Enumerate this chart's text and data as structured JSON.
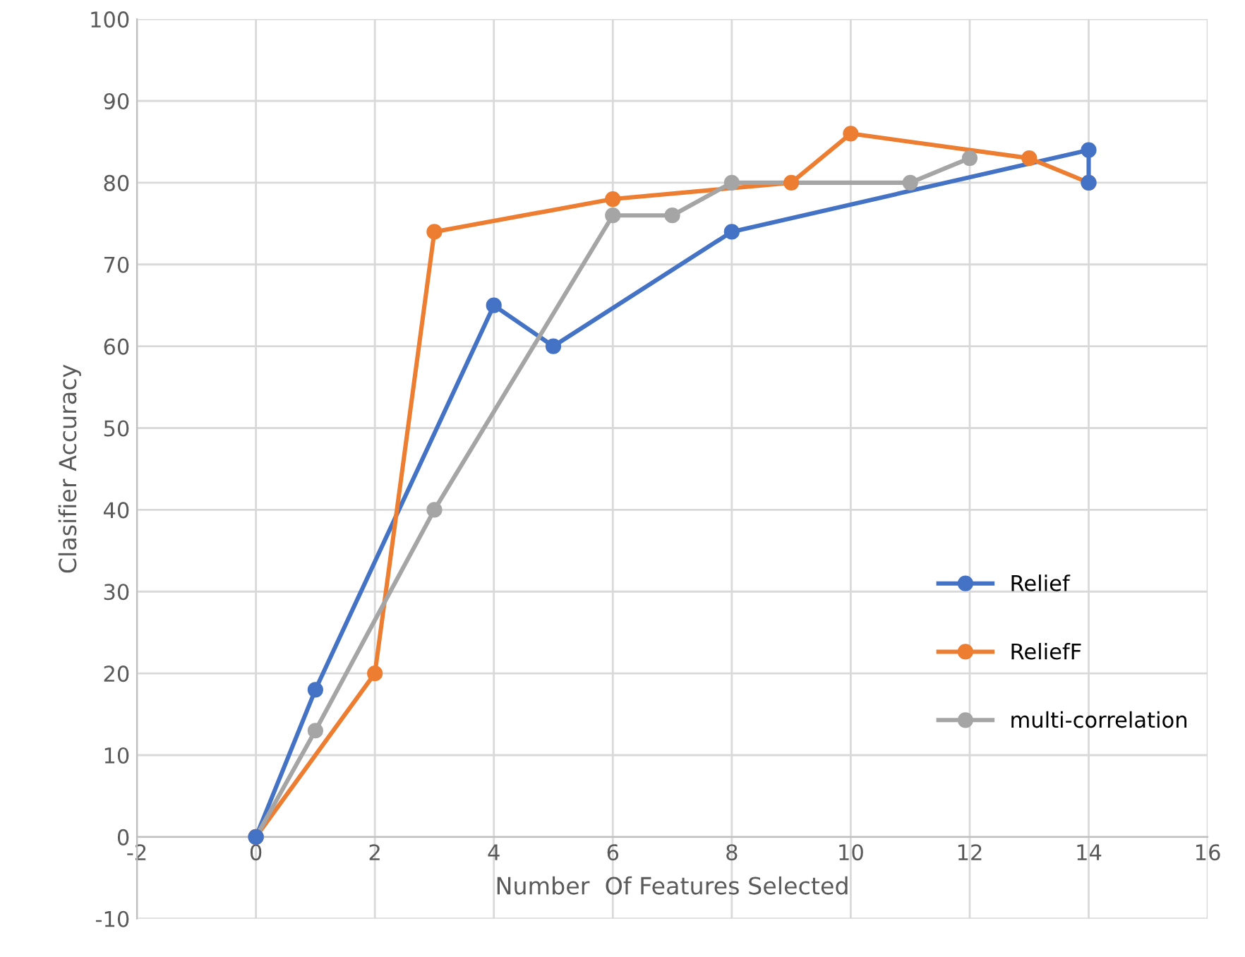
{
  "chart_data": {
    "type": "line",
    "xlabel": "Number  Of Features Selected",
    "ylabel": "Clasifier Accuracy",
    "xlim": [
      -2,
      16
    ],
    "ylim": [
      -10,
      100
    ],
    "xticks": [
      -2,
      0,
      2,
      4,
      6,
      8,
      10,
      12,
      14,
      16
    ],
    "yticks": [
      -10,
      0,
      10,
      20,
      30,
      40,
      50,
      60,
      70,
      80,
      90,
      100
    ],
    "grid": true,
    "legend": "right",
    "marker": "circle",
    "line_style": "solid",
    "series": [
      {
        "name": "Relief",
        "color": "#4472c4",
        "x": [
          0,
          1,
          4,
          5,
          8,
          14,
          14
        ],
        "values": [
          0,
          18,
          65,
          60,
          74,
          84,
          80
        ]
      },
      {
        "name": "ReliefF",
        "color": "#ed7d31",
        "x": [
          0,
          2,
          3,
          6,
          9,
          10,
          13,
          14
        ],
        "values": [
          0,
          20,
          74,
          78,
          80,
          86,
          83,
          80
        ]
      },
      {
        "name": "multi-correlation",
        "color": "#a5a5a5",
        "x": [
          0,
          1,
          3,
          6,
          7,
          8,
          11,
          12
        ],
        "values": [
          0,
          13,
          40,
          76,
          76,
          80,
          80,
          83
        ]
      }
    ]
  }
}
